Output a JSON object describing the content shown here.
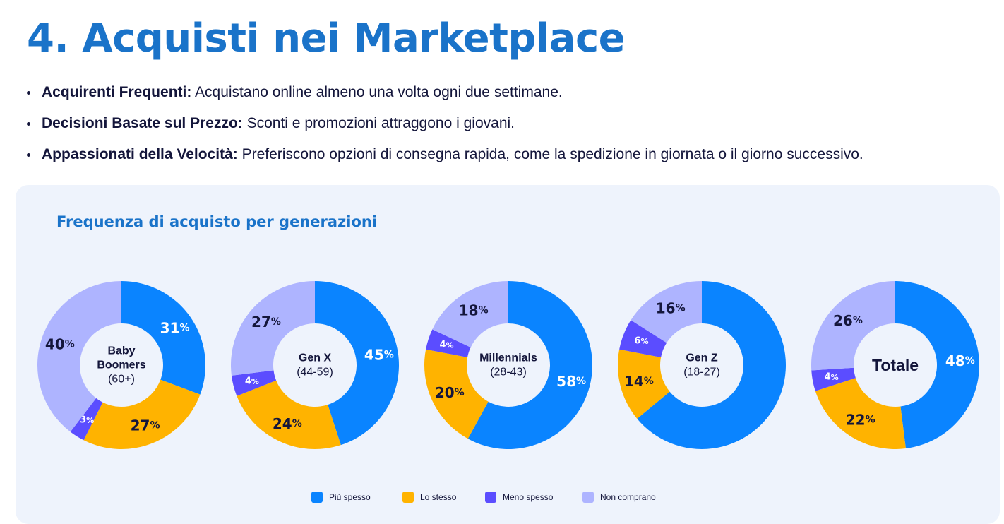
{
  "page": {
    "title": "4. Acquisti nei Marketplace",
    "bullets": [
      {
        "bold": "Acquirenti Frequenti:",
        "text": " Acquistano online almeno una volta ogni due settimane."
      },
      {
        "bold": "Decisioni Basate sul Prezzo:",
        "text": " Sconti e promozioni attraggono i giovani."
      },
      {
        "bold": "Appassionati della Velocità:",
        "text": " Preferiscono opzioni di consegna rapida, come la spedizione in giornata o il giorno successivo."
      }
    ]
  },
  "colors": {
    "piu_spesso": "#0a84ff",
    "lo_stesso": "#ffb300",
    "meno_spesso": "#5b4dff",
    "non_comprano": "#aeb4ff"
  },
  "chart_data": {
    "type": "pie",
    "variant": "donut",
    "title": "Frequenza di acquisto per generazioni",
    "value_suffix": "%",
    "series_names": [
      "Più spesso",
      "Lo stesso",
      "Meno spesso",
      "Non comprano"
    ],
    "legend": [
      {
        "name": "Più spesso",
        "color_key": "piu_spesso"
      },
      {
        "name": "Lo stesso",
        "color_key": "lo_stesso"
      },
      {
        "name": "Meno spesso",
        "color_key": "meno_spesso"
      },
      {
        "name": "Non comprano",
        "color_key": "non_comprano"
      }
    ],
    "charts": [
      {
        "id": "baby-boomers",
        "label_lines": [
          "Baby",
          "Boomers",
          "(60+)"
        ],
        "bold_center": false,
        "values": [
          31,
          27,
          3,
          40
        ]
      },
      {
        "id": "gen-x",
        "label_lines": [
          "Gen X",
          "(44-59)"
        ],
        "bold_center": false,
        "values": [
          45,
          24,
          4,
          27
        ]
      },
      {
        "id": "millennials",
        "label_lines": [
          "Millennials",
          "(28-43)"
        ],
        "bold_center": false,
        "values": [
          58,
          20,
          4,
          18
        ]
      },
      {
        "id": "gen-z",
        "label_lines": [
          "Gen Z",
          "(18-27)"
        ],
        "bold_center": false,
        "values": [
          64,
          14,
          6,
          16
        ]
      },
      {
        "id": "totale",
        "label_lines": [
          "Totale"
        ],
        "bold_center": true,
        "values": [
          48,
          22,
          4,
          26
        ]
      }
    ],
    "hidden_value_labels": [
      {
        "chart": 3,
        "slice": 0
      }
    ]
  }
}
